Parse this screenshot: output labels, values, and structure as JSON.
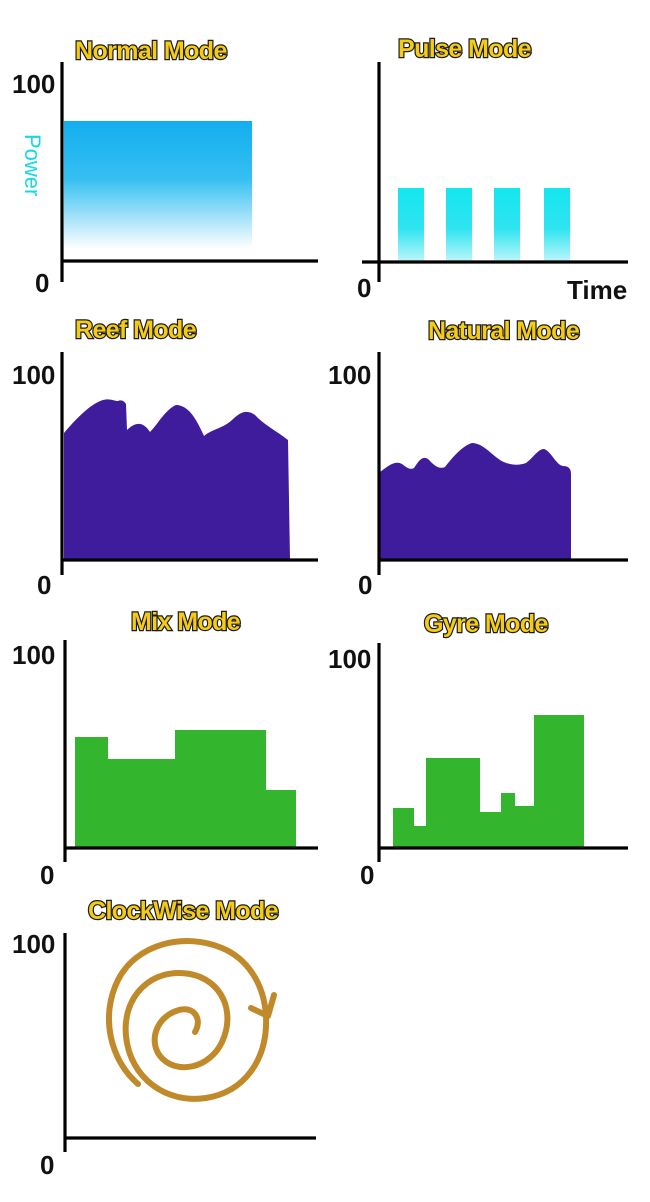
{
  "axis": {
    "y_max_label": "100",
    "y_min_label": "0",
    "y_label": "Power",
    "x_label": "Time"
  },
  "colors": {
    "title_fill": "#f6cb14",
    "normal": "#13aeee",
    "pulse": "#15e6ef",
    "reef_natural": "#3f1c9c",
    "mix_gyre": "#33b52e",
    "clockwise": "#c08a2a"
  },
  "panels": [
    {
      "id": "normal",
      "title": "Normal Mode"
    },
    {
      "id": "pulse",
      "title": "Pulse Mode"
    },
    {
      "id": "reef",
      "title": "Reef Mode"
    },
    {
      "id": "natural",
      "title": "Natural Mode"
    },
    {
      "id": "mix",
      "title": "Mix Mode"
    },
    {
      "id": "gyre",
      "title": "Gyre Mode"
    },
    {
      "id": "clockwise",
      "title": "ClockWise Mode"
    }
  ]
}
